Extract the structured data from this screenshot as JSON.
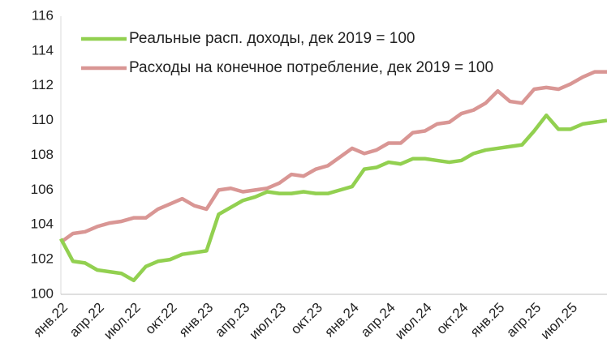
{
  "chart_data": {
    "type": "line",
    "categories": [
      "янв.22",
      null,
      null,
      "апр.22",
      null,
      null,
      "июл.22",
      null,
      null,
      "окт.22",
      null,
      null,
      "янв.23",
      null,
      null,
      "апр.23",
      null,
      null,
      "июл.23",
      null,
      null,
      "окт.23",
      null,
      null,
      "янв.24",
      null,
      null,
      "апр.24",
      null,
      null,
      "июл.24",
      null,
      null,
      "окт.24",
      null,
      null,
      "янв.25",
      null,
      null,
      "апр.25",
      null,
      null,
      "июл.25",
      null,
      null,
      null
    ],
    "series": [
      {
        "name": "Реальные расп. доходы, дек 2019 = 100",
        "color": "#92d050",
        "values": [
          103.2,
          101.9,
          101.8,
          101.4,
          101.3,
          101.2,
          100.8,
          101.6,
          101.9,
          102.0,
          102.3,
          102.4,
          102.5,
          104.6,
          105.0,
          105.4,
          105.6,
          105.9,
          105.8,
          105.8,
          105.9,
          105.8,
          105.8,
          106.0,
          106.2,
          107.2,
          107.3,
          107.6,
          107.5,
          107.8,
          107.8,
          107.7,
          107.6,
          107.7,
          108.1,
          108.3,
          108.4,
          108.5,
          108.6,
          109.4,
          110.3,
          109.5,
          109.5,
          109.8,
          109.9,
          110.0
        ]
      },
      {
        "name": "Расходы на конечное потребление, дек 2019 = 100",
        "color": "#d99694",
        "values": [
          103.0,
          103.5,
          103.6,
          103.9,
          104.1,
          104.2,
          104.4,
          104.4,
          104.9,
          105.2,
          105.5,
          105.1,
          104.9,
          106.0,
          106.1,
          105.9,
          106.0,
          106.1,
          106.4,
          106.9,
          106.8,
          107.2,
          107.4,
          107.9,
          108.4,
          108.1,
          108.3,
          108.7,
          108.7,
          109.3,
          109.4,
          109.8,
          109.9,
          110.4,
          110.6,
          111.0,
          111.7,
          111.1,
          111.0,
          111.8,
          111.9,
          111.8,
          112.1,
          112.5,
          112.8,
          112.8
        ]
      }
    ],
    "ylim": [
      100,
      116
    ],
    "yticks": [
      100,
      102,
      104,
      106,
      108,
      110,
      112,
      114,
      116
    ],
    "grid": false,
    "legend": "upper left"
  }
}
